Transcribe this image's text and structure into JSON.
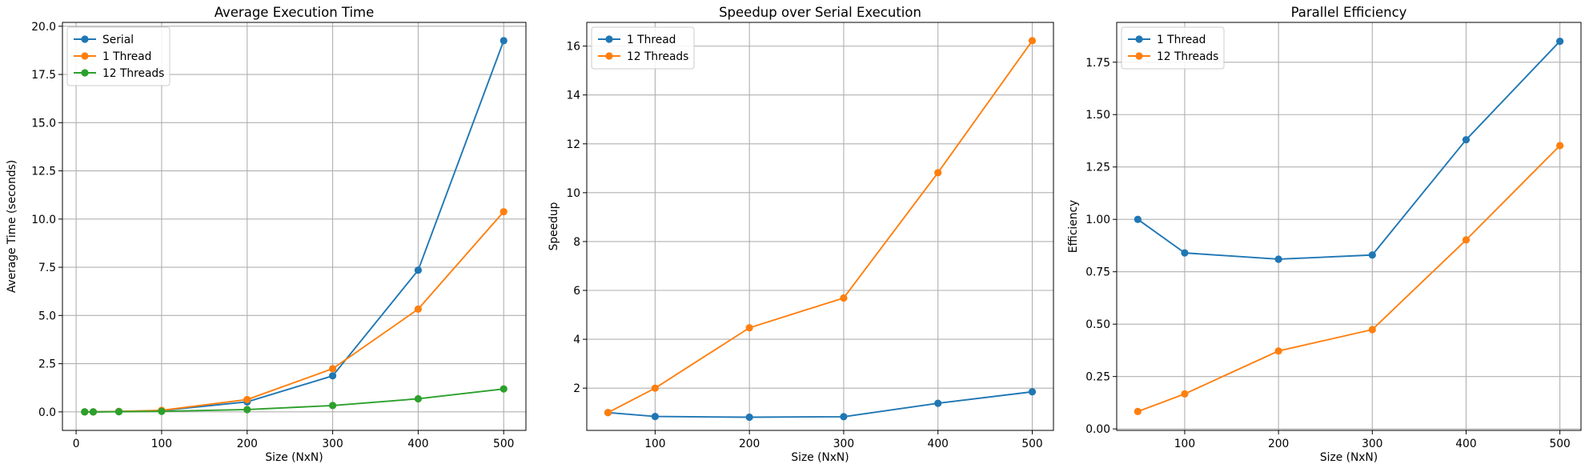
{
  "chart_data": [
    {
      "type": "line",
      "title": "Average Execution Time",
      "xlabel": "Size (NxN)",
      "ylabel": "Average Time (seconds)",
      "xlim": [
        -16,
        526
      ],
      "ylim": [
        -0.96,
        20.2
      ],
      "xticks": [
        0,
        100,
        200,
        300,
        400,
        500
      ],
      "yticks": [
        0,
        2.5,
        5,
        7.5,
        10,
        12.5,
        15,
        17.5,
        20
      ],
      "ytick_labels": [
        "0.0",
        "2.5",
        "5.0",
        "7.5",
        "10.0",
        "12.5",
        "15.0",
        "17.5",
        "20.0"
      ],
      "grid": true,
      "legend": "upper-left",
      "series": [
        {
          "name": "Serial",
          "color": "#1f77b4",
          "x": [
            10,
            20,
            50,
            100,
            200,
            300,
            400,
            500
          ],
          "y": [
            0.0,
            0.0,
            0.02,
            0.07,
            0.52,
            1.87,
            7.35,
            19.25
          ]
        },
        {
          "name": "1 Thread",
          "color": "#ff7f0e",
          "x": [
            10,
            20,
            50,
            100,
            200,
            300,
            400,
            500
          ],
          "y": [
            0.0,
            0.0,
            0.02,
            0.08,
            0.64,
            2.24,
            5.33,
            10.38
          ]
        },
        {
          "name": "12 Threads",
          "color": "#2ca02c",
          "x": [
            10,
            20,
            50,
            100,
            200,
            300,
            400,
            500
          ],
          "y": [
            0.0,
            0.0,
            0.01,
            0.03,
            0.12,
            0.33,
            0.68,
            1.19
          ]
        }
      ]
    },
    {
      "type": "line",
      "title": "Speedup over Serial Execution",
      "xlabel": "Size (NxN)",
      "ylabel": "Speedup",
      "xlim": [
        27.5,
        522.5
      ],
      "ylim": [
        0.27,
        16.97
      ],
      "xticks": [
        100,
        200,
        300,
        400,
        500
      ],
      "yticks": [
        2,
        4,
        6,
        8,
        10,
        12,
        14,
        16
      ],
      "ytick_labels": [
        "2",
        "4",
        "6",
        "8",
        "10",
        "12",
        "14",
        "16"
      ],
      "grid": true,
      "legend": "upper-left",
      "series": [
        {
          "name": "1 Thread",
          "color": "#1f77b4",
          "x": [
            50,
            100,
            200,
            300,
            400,
            500
          ],
          "y": [
            1.0,
            0.84,
            0.81,
            0.83,
            1.38,
            1.85
          ]
        },
        {
          "name": "12 Threads",
          "color": "#ff7f0e",
          "x": [
            50,
            100,
            200,
            300,
            400,
            500
          ],
          "y": [
            1.0,
            2.0,
            4.47,
            5.69,
            10.82,
            16.22
          ]
        }
      ]
    },
    {
      "type": "line",
      "title": "Parallel Efficiency",
      "xlabel": "Size (NxN)",
      "ylabel": "Efficiency",
      "xlim": [
        27.5,
        522.5
      ],
      "ylim": [
        -0.0071,
        1.94
      ],
      "xticks": [
        100,
        200,
        300,
        400,
        500
      ],
      "yticks": [
        0,
        0.25,
        0.5,
        0.75,
        1,
        1.25,
        1.5,
        1.75
      ],
      "ytick_labels": [
        "0.00",
        "0.25",
        "0.50",
        "0.75",
        "1.00",
        "1.25",
        "1.50",
        "1.75"
      ],
      "grid": true,
      "legend": "upper-left",
      "series": [
        {
          "name": "1 Thread",
          "color": "#1f77b4",
          "x": [
            50,
            100,
            200,
            300,
            400,
            500
          ],
          "y": [
            1.0,
            0.84,
            0.81,
            0.83,
            1.38,
            1.85
          ]
        },
        {
          "name": "12 Threads",
          "color": "#ff7f0e",
          "x": [
            50,
            100,
            200,
            300,
            400,
            500
          ],
          "y": [
            0.083,
            0.167,
            0.372,
            0.474,
            0.902,
            1.352
          ]
        }
      ]
    }
  ]
}
